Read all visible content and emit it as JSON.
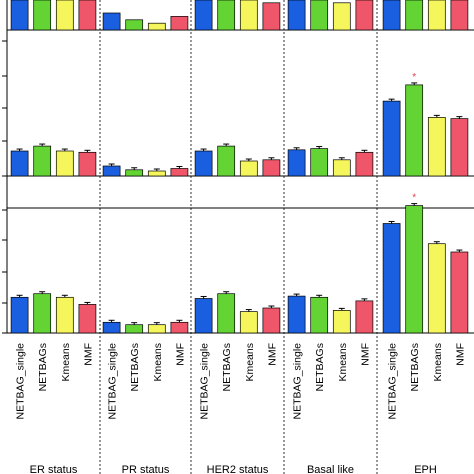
{
  "chart_data": {
    "type": "bar",
    "groups": [
      "ER status",
      "PR status",
      "HER2 status",
      "Basal like",
      "EPH"
    ],
    "methods": [
      "NETBAG_single",
      "NETBAGs",
      "Kmeans",
      "NMF"
    ],
    "colors": {
      "NETBAG_single": "#1a5fe0",
      "NETBAGs": "#63d434",
      "Kmeans": "#f5f55c",
      "NMF": "#f0566a"
    },
    "panels": [
      {
        "ylim": [
          0,
          1
        ],
        "values": [
          [
            0.55,
            0.75,
            0.65,
            0.9
          ],
          [
            0.25,
            0.15,
            0.1,
            0.2
          ],
          [
            0.6,
            0.9,
            0.45,
            0.4
          ],
          [
            0.55,
            0.9,
            0.4,
            0.65
          ],
          [
            1.0,
            1.0,
            1.0,
            1.0
          ]
        ],
        "significant": []
      },
      {
        "ylim": [
          0,
          1.05
        ],
        "values": [
          [
            0.2,
            0.24,
            0.2,
            0.19
          ],
          [
            0.08,
            0.05,
            0.04,
            0.06
          ],
          [
            0.2,
            0.24,
            0.12,
            0.13
          ],
          [
            0.21,
            0.22,
            0.13,
            0.19
          ],
          [
            0.6,
            0.73,
            0.47,
            0.46
          ]
        ],
        "significant": [
          [
            4,
            1
          ]
        ]
      },
      {
        "ylim": [
          0,
          1.05
        ],
        "values": [
          [
            0.3,
            0.33,
            0.3,
            0.24
          ],
          [
            0.09,
            0.07,
            0.07,
            0.09
          ],
          [
            0.29,
            0.33,
            0.18,
            0.21
          ],
          [
            0.31,
            0.3,
            0.19,
            0.27
          ],
          [
            0.92,
            1.07,
            0.75,
            0.68
          ]
        ],
        "significant": [
          [
            4,
            1
          ]
        ]
      }
    ],
    "significance_mark": "*"
  }
}
